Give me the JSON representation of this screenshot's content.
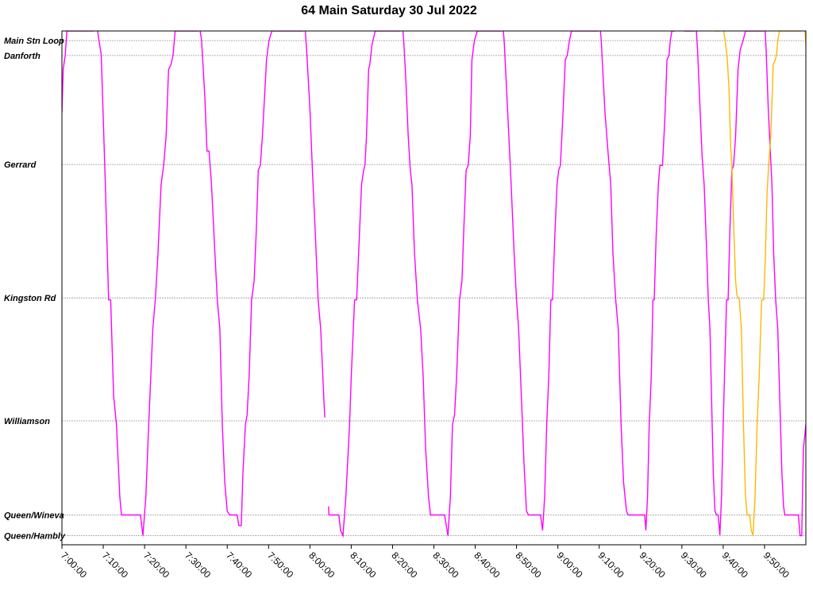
{
  "chart_data": {
    "type": "line",
    "title": "64 Main Saturday 30 Jul 2022",
    "xlabel": "",
    "ylabel": "",
    "x_range_minutes": [
      420,
      600
    ],
    "x_ticks": [
      "7:00:00",
      "7:10:00",
      "7:20:00",
      "7:30:00",
      "7:40:00",
      "7:50:00",
      "8:00:00",
      "8:10:00",
      "8:20:00",
      "8:30:00",
      "8:40:00",
      "8:50:00",
      "9:00:00",
      "9:10:00",
      "9:20:00",
      "9:30:00",
      "9:40:00",
      "9:50:00"
    ],
    "stops": [
      {
        "name": "Main Stn Loop",
        "pos": 100
      },
      {
        "name": "Danforth",
        "pos": 96.9
      },
      {
        "name": "Gerrard",
        "pos": 74.2
      },
      {
        "name": "Kingston Rd",
        "pos": 46.4
      },
      {
        "name": "Williamson",
        "pos": 20.8
      },
      {
        "name": "Queen/Wineva",
        "pos": 1.2
      },
      {
        "name": "Queen/Hambly",
        "pos": -3.1
      }
    ],
    "y_range": [
      -5,
      102
    ],
    "grid": true,
    "colors": {
      "vehicle_a": "#ff00ff",
      "vehicle_b": "#ffb800"
    },
    "series": [
      {
        "color": "#ff00ff",
        "points": [
          [
            420.0,
            85
          ],
          [
            420.3,
            94
          ],
          [
            420.8,
            97
          ],
          [
            421.2,
            102
          ],
          [
            427.6,
            102
          ],
          [
            428.2,
            105
          ],
          [
            428.8,
            101
          ],
          [
            429.5,
            97
          ],
          [
            430.5,
            70
          ],
          [
            431.3,
            46
          ],
          [
            431.8,
            46
          ],
          [
            432.5,
            26
          ],
          [
            433.2,
            20
          ],
          [
            434.0,
            5
          ],
          [
            434.4,
            1.2
          ],
          [
            439.0,
            1.2
          ],
          [
            439.6,
            -3.1
          ],
          [
            440.3,
            5
          ],
          [
            441.0,
            20
          ],
          [
            442.0,
            40
          ],
          [
            442.6,
            46
          ],
          [
            443.2,
            55
          ],
          [
            444.0,
            70
          ],
          [
            444.6,
            74
          ],
          [
            445.2,
            80
          ],
          [
            445.8,
            94
          ],
          [
            446.4,
            95
          ],
          [
            446.9,
            97
          ],
          [
            447.4,
            102
          ],
          [
            452.8,
            102
          ],
          [
            453.1,
            104
          ],
          [
            453.8,
            100
          ],
          [
            454.6,
            88
          ],
          [
            455.1,
            77
          ],
          [
            455.6,
            77
          ],
          [
            456.2,
            70
          ],
          [
            457.0,
            56
          ],
          [
            457.6,
            46
          ],
          [
            458.2,
            40
          ],
          [
            458.8,
            20
          ],
          [
            459.4,
            8
          ],
          [
            460.0,
            2
          ],
          [
            460.6,
            1.2
          ],
          [
            462.4,
            1.2
          ],
          [
            462.8,
            -1
          ],
          [
            463.4,
            -1
          ],
          [
            463.8,
            10
          ],
          [
            464.4,
            20
          ],
          [
            464.8,
            22
          ],
          [
            465.3,
            30
          ],
          [
            465.9,
            46
          ],
          [
            466.5,
            50
          ],
          [
            467.0,
            60
          ],
          [
            467.5,
            73
          ],
          [
            468.0,
            74
          ],
          [
            468.5,
            80
          ],
          [
            469.0,
            88
          ],
          [
            469.5,
            96
          ],
          [
            470.1,
            100
          ],
          [
            470.8,
            102
          ],
          [
            478.3,
            102
          ],
          [
            478.6,
            106
          ],
          [
            479.2,
            98
          ],
          [
            480.0,
            86
          ],
          [
            480.6,
            73
          ],
          [
            481.3,
            60
          ],
          [
            482.0,
            46
          ],
          [
            482.6,
            40
          ],
          [
            483.4,
            25
          ],
          [
            483.6,
            21.5
          ]
        ]
      },
      {
        "color": "#ff00ff",
        "points": [
          [
            484.5,
            3
          ],
          [
            484.6,
            1.2
          ],
          [
            487.0,
            1.2
          ],
          [
            487.4,
            -2
          ],
          [
            488.0,
            -3.1
          ],
          [
            488.7,
            5
          ],
          [
            489.6,
            20
          ],
          [
            490.0,
            30
          ],
          [
            490.8,
            46
          ],
          [
            491.3,
            46
          ],
          [
            492.0,
            60
          ],
          [
            492.5,
            70
          ],
          [
            493.0,
            73
          ],
          [
            493.3,
            74
          ],
          [
            493.7,
            80
          ],
          [
            494.2,
            94
          ],
          [
            494.5,
            95
          ],
          [
            495.0,
            99
          ],
          [
            495.8,
            102
          ],
          [
            501.8,
            102
          ],
          [
            502.2,
            105
          ],
          [
            502.7,
            100
          ],
          [
            503.2,
            92
          ],
          [
            503.8,
            80
          ],
          [
            504.3,
            73
          ],
          [
            504.7,
            70
          ],
          [
            505.3,
            56
          ],
          [
            506.0,
            46
          ],
          [
            506.8,
            40
          ],
          [
            507.4,
            30
          ],
          [
            508.0,
            15
          ],
          [
            508.7,
            5
          ],
          [
            509.2,
            1.2
          ],
          [
            512.6,
            1.2
          ],
          [
            513.0,
            -1
          ],
          [
            513.4,
            -3.1
          ],
          [
            514.0,
            5
          ],
          [
            514.5,
            20
          ],
          [
            515.0,
            22
          ],
          [
            515.5,
            30
          ],
          [
            516.2,
            46
          ],
          [
            516.8,
            50
          ],
          [
            517.2,
            60
          ],
          [
            517.8,
            73
          ],
          [
            518.3,
            74
          ],
          [
            518.8,
            80
          ],
          [
            519.2,
            96
          ],
          [
            519.8,
            100
          ],
          [
            520.5,
            102
          ],
          [
            526.2,
            102
          ],
          [
            526.5,
            105
          ],
          [
            527.0,
            100
          ],
          [
            527.8,
            86
          ],
          [
            528.3,
            77
          ],
          [
            528.7,
            70
          ],
          [
            529.4,
            56
          ],
          [
            530.0,
            46
          ],
          [
            530.5,
            40
          ],
          [
            531.2,
            25
          ],
          [
            531.8,
            12
          ],
          [
            532.4,
            2
          ],
          [
            532.9,
            1.2
          ],
          [
            535.8,
            1.2
          ],
          [
            536.3,
            -2
          ],
          [
            536.8,
            5
          ],
          [
            537.3,
            20
          ],
          [
            537.8,
            30
          ],
          [
            538.3,
            46
          ],
          [
            538.7,
            46
          ],
          [
            539.3,
            60
          ],
          [
            539.8,
            70
          ],
          [
            540.2,
            73
          ],
          [
            540.6,
            74
          ],
          [
            541.2,
            84
          ],
          [
            541.8,
            96
          ],
          [
            542.3,
            97
          ],
          [
            542.8,
            100
          ],
          [
            543.3,
            102
          ],
          [
            549.6,
            102
          ],
          [
            550.0,
            105
          ],
          [
            550.5,
            100
          ],
          [
            551.4,
            85
          ],
          [
            552.2,
            76
          ],
          [
            552.8,
            70
          ],
          [
            553.3,
            56
          ],
          [
            554.0,
            46
          ],
          [
            554.6,
            40
          ],
          [
            555.3,
            20
          ],
          [
            555.9,
            8
          ],
          [
            556.6,
            2
          ],
          [
            557.0,
            1.2
          ],
          [
            561.0,
            1.2
          ],
          [
            561.3,
            -2
          ],
          [
            561.7,
            5
          ],
          [
            562.1,
            20
          ],
          [
            562.6,
            30
          ],
          [
            563.0,
            46
          ],
          [
            563.3,
            46
          ],
          [
            563.8,
            60
          ],
          [
            564.3,
            70
          ],
          [
            564.7,
            74
          ],
          [
            565.3,
            74
          ],
          [
            565.9,
            84
          ],
          [
            566.4,
            96
          ],
          [
            566.9,
            97
          ],
          [
            567.2,
            100
          ],
          [
            567.6,
            102
          ],
          [
            568.2,
            102
          ],
          [
            568.8,
            103.5
          ],
          [
            570.0,
            103.5
          ],
          [
            570.6,
            102
          ],
          [
            573.0,
            102
          ],
          [
            573.3,
            105
          ],
          [
            573.8,
            98
          ],
          [
            574.4,
            86
          ],
          [
            574.9,
            76
          ],
          [
            575.4,
            70
          ],
          [
            576.0,
            56
          ],
          [
            576.4,
            46
          ],
          [
            576.8,
            40
          ],
          [
            577.2,
            25
          ],
          [
            577.6,
            10
          ],
          [
            578.0,
            2
          ],
          [
            578.4,
            1.2
          ],
          [
            578.8,
            1.2
          ],
          [
            579.2,
            -3
          ],
          [
            579.6,
            5
          ],
          [
            580.0,
            20
          ],
          [
            580.3,
            30
          ],
          [
            580.8,
            46
          ],
          [
            581.2,
            46
          ],
          [
            581.6,
            60
          ],
          [
            582.1,
            73
          ],
          [
            582.5,
            74
          ],
          [
            583.0,
            80
          ],
          [
            583.6,
            94
          ],
          [
            584.1,
            98
          ],
          [
            584.8,
            100
          ],
          [
            585.4,
            102
          ],
          [
            589.7,
            102
          ],
          [
            590.0,
            105
          ],
          [
            590.4,
            98
          ],
          [
            590.9,
            86
          ],
          [
            591.4,
            77
          ],
          [
            591.8,
            70
          ],
          [
            592.2,
            56
          ],
          [
            592.7,
            46
          ],
          [
            593.2,
            40
          ],
          [
            593.7,
            25
          ],
          [
            594.2,
            10
          ],
          [
            594.6,
            3
          ],
          [
            594.9,
            1.2
          ],
          [
            598.2,
            1.2
          ],
          [
            598.6,
            -3.1
          ],
          [
            599.0,
            -3.1
          ],
          [
            599.4,
            15
          ],
          [
            600.0,
            20
          ]
        ]
      },
      {
        "color": "#ffb800",
        "points": [
          [
            578.0,
            102
          ],
          [
            579.0,
            102
          ],
          [
            579.2,
            102.5
          ],
          [
            580.0,
            102.5
          ],
          [
            580.5,
            100
          ],
          [
            581.0,
            96
          ],
          [
            581.4,
            90
          ],
          [
            581.8,
            78
          ],
          [
            582.1,
            74
          ],
          [
            582.6,
            60
          ],
          [
            583.0,
            50
          ],
          [
            583.3,
            47
          ],
          [
            583.9,
            46
          ],
          [
            584.4,
            40
          ],
          [
            584.9,
            20
          ],
          [
            585.4,
            5
          ],
          [
            585.8,
            1.2
          ],
          [
            586.4,
            1.2
          ],
          [
            586.8,
            -2
          ],
          [
            587.2,
            -3.1
          ],
          [
            587.7,
            5
          ],
          [
            588.2,
            20
          ],
          [
            588.7,
            30
          ],
          [
            589.3,
            46
          ],
          [
            589.8,
            46
          ],
          [
            590.2,
            55
          ],
          [
            590.6,
            68
          ],
          [
            591.0,
            74
          ],
          [
            591.5,
            80
          ],
          [
            592.1,
            95
          ],
          [
            592.6,
            96
          ],
          [
            592.9,
            97
          ],
          [
            593.2,
            100
          ],
          [
            593.6,
            102
          ],
          [
            598.2,
            102
          ],
          [
            598.7,
            102
          ],
          [
            599.3,
            106
          ],
          [
            599.8,
            102
          ],
          [
            600.3,
            95
          ],
          [
            600.8,
            80
          ],
          [
            601.1,
            77
          ],
          [
            601.5,
            77
          ],
          [
            602.2,
            70
          ],
          [
            602.8,
            56
          ],
          [
            603.5,
            46
          ],
          [
            604.1,
            40
          ],
          [
            604.8,
            25
          ],
          [
            605.4,
            10
          ],
          [
            606.0,
            1.2
          ],
          [
            607.1,
            1.2
          ],
          [
            607.6,
            -3.1
          ],
          [
            608.1,
            5
          ],
          [
            608.5,
            20
          ],
          [
            609.0,
            30
          ],
          [
            609.5,
            46
          ],
          [
            610.0,
            46
          ],
          [
            610.3,
            55
          ],
          [
            610.7,
            68
          ],
          [
            611.1,
            74
          ],
          [
            611.5,
            80
          ],
          [
            612.0,
            96
          ],
          [
            612.3,
            97
          ],
          [
            612.8,
            100
          ],
          [
            613.4,
            102
          ],
          [
            620.0,
            102
          ]
        ]
      }
    ]
  }
}
